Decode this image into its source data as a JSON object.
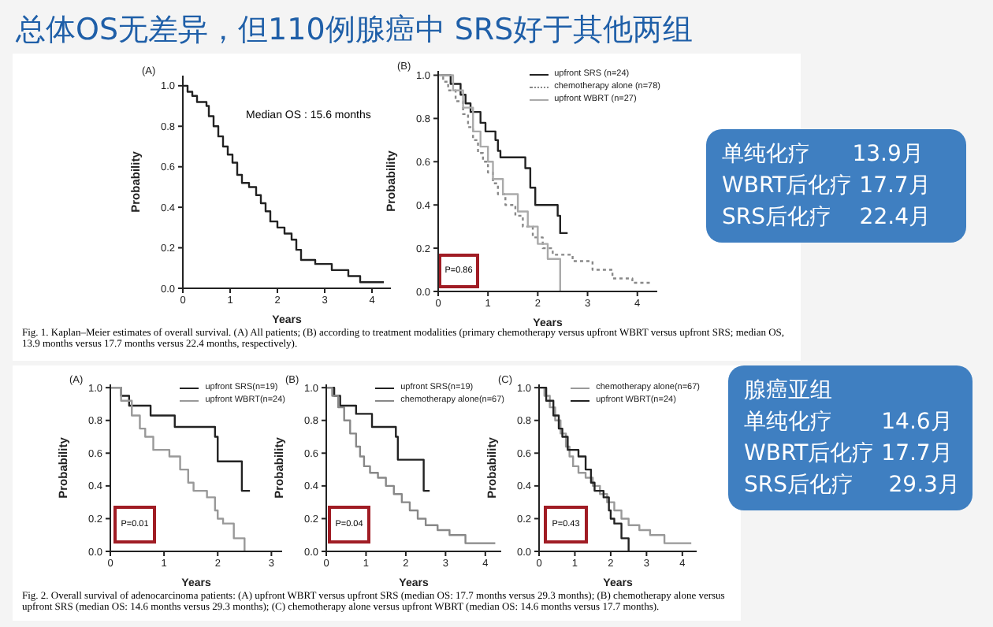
{
  "chart_data": [
    {
      "type": "step",
      "title": "(A)",
      "xlabel": "Years",
      "ylabel": "Probability",
      "xlim": [
        0,
        4.4
      ],
      "xticks": [
        0,
        1,
        2,
        3,
        4
      ],
      "ylim": [
        0,
        1.05
      ],
      "yticks": [
        {
          "value": 0,
          "label": "0.0"
        },
        {
          "value": 0.2,
          "label": "0.2"
        },
        {
          "value": 0.4,
          "label": "0.4"
        },
        {
          "value": 0.6,
          "label": "0.6"
        },
        {
          "value": 0.8,
          "label": "0.8"
        },
        {
          "value": 1,
          "label": "1.0"
        }
      ],
      "annotations": [
        "总体OS无差异，但110例腺癌中 SRS好于其他两组",
        "Median OS : 15.6 months"
      ],
      "series": [
        {
          "color": "#222222",
          "x": [
            0,
            0.1,
            0.2,
            0.3,
            0.5,
            0.55,
            0.65,
            0.75,
            0.85,
            0.95,
            1.05,
            1.15,
            1.25,
            1.4,
            1.55,
            1.65,
            1.75,
            1.85,
            2.0,
            2.15,
            2.3,
            2.4,
            2.5,
            2.8,
            3.15,
            3.5,
            3.75,
            4.25
          ],
          "values": [
            1,
            0.97,
            0.95,
            0.92,
            0.9,
            0.85,
            0.8,
            0.75,
            0.7,
            0.66,
            0.62,
            0.56,
            0.52,
            0.5,
            0.46,
            0.42,
            0.38,
            0.33,
            0.3,
            0.27,
            0.24,
            0.19,
            0.14,
            0.12,
            0.09,
            0.06,
            0.03,
            0.03
          ]
        }
      ]
    },
    {
      "type": "step",
      "title": "(B)",
      "xlabel": "Years",
      "ylabel": "Probability",
      "xlim": [
        0,
        4.4
      ],
      "xticks": [
        0,
        1,
        2,
        3,
        4
      ],
      "ylim": [
        0,
        1.02
      ],
      "yticks": [
        {
          "value": 0,
          "label": "0.0"
        },
        {
          "value": 0.2,
          "label": "0.2"
        },
        {
          "value": 0.4,
          "label": "0.4"
        },
        {
          "value": 0.6,
          "label": "0.6"
        },
        {
          "value": 0.8,
          "label": "0.8"
        },
        {
          "value": 1,
          "label": "1.0"
        }
      ],
      "legend": "top right",
      "annotations": [
        "P=0.86",
        "Fig. 1. Kaplan–Meier estimates of overall survival. (A) All patients; (B) according to treatment modalities (primary chemotherapy versus upfront WBRT versus upfront SRS; median OS, 13.9 months versus 17.7 months versus 22.4 months, respectively).",
        "单纯化疗      13.9月",
        "WBRT后化疗 17.7月",
        "SRS后化疗    22.4月"
      ],
      "series": [
        {
          "name": "upfront SRS (n=24)",
          "color": "#222222",
          "x": [
            0,
            0.25,
            0.45,
            0.55,
            0.65,
            0.85,
            0.95,
            1.15,
            1.2,
            1.25,
            1.75,
            1.85,
            1.95,
            2.4,
            2.45,
            2.6
          ],
          "values": [
            1,
            0.96,
            0.91,
            0.87,
            0.83,
            0.78,
            0.74,
            0.7,
            0.65,
            0.62,
            0.57,
            0.48,
            0.4,
            0.35,
            0.27,
            0.27
          ]
        },
        {
          "name": "chemotherapy alone (n=78)",
          "color": "#888888",
          "line_style": "dotted",
          "x": [
            0,
            0.1,
            0.2,
            0.35,
            0.5,
            0.6,
            0.7,
            0.8,
            0.9,
            1.0,
            1.1,
            1.2,
            1.35,
            1.55,
            1.7,
            1.9,
            2.1,
            2.3,
            2.7,
            3.1,
            3.5,
            3.9,
            4.3
          ],
          "values": [
            1,
            0.97,
            0.93,
            0.88,
            0.82,
            0.76,
            0.7,
            0.64,
            0.6,
            0.55,
            0.5,
            0.45,
            0.4,
            0.35,
            0.3,
            0.25,
            0.2,
            0.17,
            0.14,
            0.1,
            0.06,
            0.04,
            0.04
          ]
        },
        {
          "name": "upfront WBRT (n=27)",
          "color": "#aaaaaa",
          "x": [
            0,
            0.3,
            0.5,
            0.7,
            0.85,
            1.0,
            1.1,
            1.3,
            1.6,
            1.8,
            2.0,
            2.2,
            2.45
          ],
          "values": [
            1,
            0.93,
            0.85,
            0.74,
            0.67,
            0.6,
            0.52,
            0.45,
            0.37,
            0.3,
            0.22,
            0.15,
            0
          ]
        }
      ]
    },
    {
      "type": "step",
      "title": "(A)",
      "xlabel": "Years",
      "ylabel": "Probability",
      "xlim": [
        0,
        3.2
      ],
      "xticks": [
        0,
        1,
        2,
        3
      ],
      "ylim": [
        0,
        1.02
      ],
      "yticks": [
        {
          "value": 0,
          "label": "0.0"
        },
        {
          "value": 0.2,
          "label": "0.2"
        },
        {
          "value": 0.4,
          "label": "0.4"
        },
        {
          "value": 0.6,
          "label": "0.6"
        },
        {
          "value": 0.8,
          "label": "0.8"
        },
        {
          "value": 1,
          "label": "1.0"
        }
      ],
      "legend": "top right",
      "annotations": [
        "P=0.01"
      ],
      "series": [
        {
          "name": "upfront SRS(n=19)",
          "color": "#222222",
          "x": [
            0,
            0.2,
            0.35,
            0.75,
            1.2,
            1.95,
            2.0,
            2.45,
            2.6
          ],
          "values": [
            1,
            0.95,
            0.89,
            0.83,
            0.76,
            0.7,
            0.55,
            0.37,
            0.37
          ]
        },
        {
          "name": "upfront WBRT(n=24)",
          "color": "#999999",
          "x": [
            0,
            0.2,
            0.4,
            0.55,
            0.65,
            0.8,
            1.1,
            1.3,
            1.45,
            1.55,
            1.8,
            1.95,
            2.0,
            2.1,
            2.3,
            2.5
          ],
          "values": [
            1,
            0.92,
            0.83,
            0.75,
            0.7,
            0.62,
            0.58,
            0.5,
            0.42,
            0.37,
            0.33,
            0.25,
            0.2,
            0.17,
            0.08,
            0
          ]
        }
      ]
    },
    {
      "type": "step",
      "title": "(B)",
      "xlabel": "Years",
      "ylabel": "Probability",
      "xlim": [
        0,
        4.4
      ],
      "xticks": [
        0,
        1,
        2,
        3,
        4
      ],
      "ylim": [
        0,
        1.02
      ],
      "yticks": [
        {
          "value": 0,
          "label": "0.0"
        },
        {
          "value": 0.2,
          "label": "0.2"
        },
        {
          "value": 0.4,
          "label": "0.4"
        },
        {
          "value": 0.6,
          "label": "0.6"
        },
        {
          "value": 0.8,
          "label": "0.8"
        },
        {
          "value": 1,
          "label": "1.0"
        }
      ],
      "legend": "top right",
      "annotations": [
        "P=0.04"
      ],
      "series": [
        {
          "name": "upfront SRS(n=19)",
          "color": "#222222",
          "x": [
            0,
            0.2,
            0.35,
            0.75,
            1.15,
            1.75,
            1.8,
            2.45,
            2.6
          ],
          "values": [
            1,
            0.95,
            0.89,
            0.84,
            0.76,
            0.7,
            0.56,
            0.37,
            0.37
          ]
        },
        {
          "name": "chemotherapy alone(n=67)",
          "color": "#888888",
          "x": [
            0,
            0.15,
            0.3,
            0.45,
            0.6,
            0.75,
            0.85,
            0.95,
            1.1,
            1.3,
            1.5,
            1.7,
            1.9,
            2.1,
            2.3,
            2.5,
            2.8,
            3.1,
            3.5,
            4.25
          ],
          "values": [
            1,
            0.95,
            0.88,
            0.8,
            0.72,
            0.64,
            0.58,
            0.52,
            0.48,
            0.45,
            0.4,
            0.35,
            0.3,
            0.25,
            0.2,
            0.16,
            0.13,
            0.1,
            0.05,
            0.05
          ]
        }
      ]
    },
    {
      "type": "step",
      "title": "(C)",
      "xlabel": "Years",
      "ylabel": "Probability",
      "xlim": [
        0,
        4.4
      ],
      "xticks": [
        0,
        1,
        2,
        3,
        4
      ],
      "ylim": [
        0,
        1.02
      ],
      "yticks": [
        {
          "value": 0,
          "label": "0.0"
        },
        {
          "value": 0.2,
          "label": "0.2"
        },
        {
          "value": 0.4,
          "label": "0.4"
        },
        {
          "value": 0.6,
          "label": "0.6"
        },
        {
          "value": 0.8,
          "label": "0.8"
        },
        {
          "value": 1,
          "label": "1.0"
        }
      ],
      "legend": "top right",
      "annotations": [
        "P=0.43",
        "Fig. 2. Overall survival of adenocarcinoma patients: (A) upfront WBRT versus upfront SRS (median OS: 17.7 months versus 29.3 months); (B) chemotherapy alone versus upfront SRS (median OS: 14.6 months versus 29.3 months); (C) chemotherapy alone versus upfront WBRT (median OS: 14.6 months versus 17.7 months).",
        "腺癌亚组",
        "单纯化疗       14.6月",
        "WBRT后化疗 17.7月",
        "SRS后化疗     29.3月"
      ],
      "series": [
        {
          "name": "chemotherapy alone(n=67)",
          "color": "#999999",
          "x": [
            0,
            0.15,
            0.3,
            0.45,
            0.6,
            0.75,
            0.85,
            0.95,
            1.1,
            1.3,
            1.5,
            1.7,
            1.9,
            2.1,
            2.3,
            2.5,
            2.8,
            3.1,
            3.5,
            4.25
          ],
          "values": [
            1,
            0.95,
            0.88,
            0.8,
            0.72,
            0.64,
            0.58,
            0.52,
            0.48,
            0.45,
            0.4,
            0.35,
            0.3,
            0.25,
            0.2,
            0.16,
            0.13,
            0.1,
            0.05,
            0.05
          ]
        },
        {
          "name": "upfront WBRT(n=24)",
          "color": "#222222",
          "x": [
            0,
            0.2,
            0.4,
            0.55,
            0.65,
            0.8,
            1.1,
            1.3,
            1.45,
            1.55,
            1.8,
            1.95,
            2.0,
            2.1,
            2.3,
            2.5
          ],
          "values": [
            1,
            0.92,
            0.83,
            0.75,
            0.7,
            0.62,
            0.58,
            0.5,
            0.42,
            0.37,
            0.33,
            0.25,
            0.2,
            0.17,
            0.08,
            0
          ]
        }
      ]
    }
  ]
}
